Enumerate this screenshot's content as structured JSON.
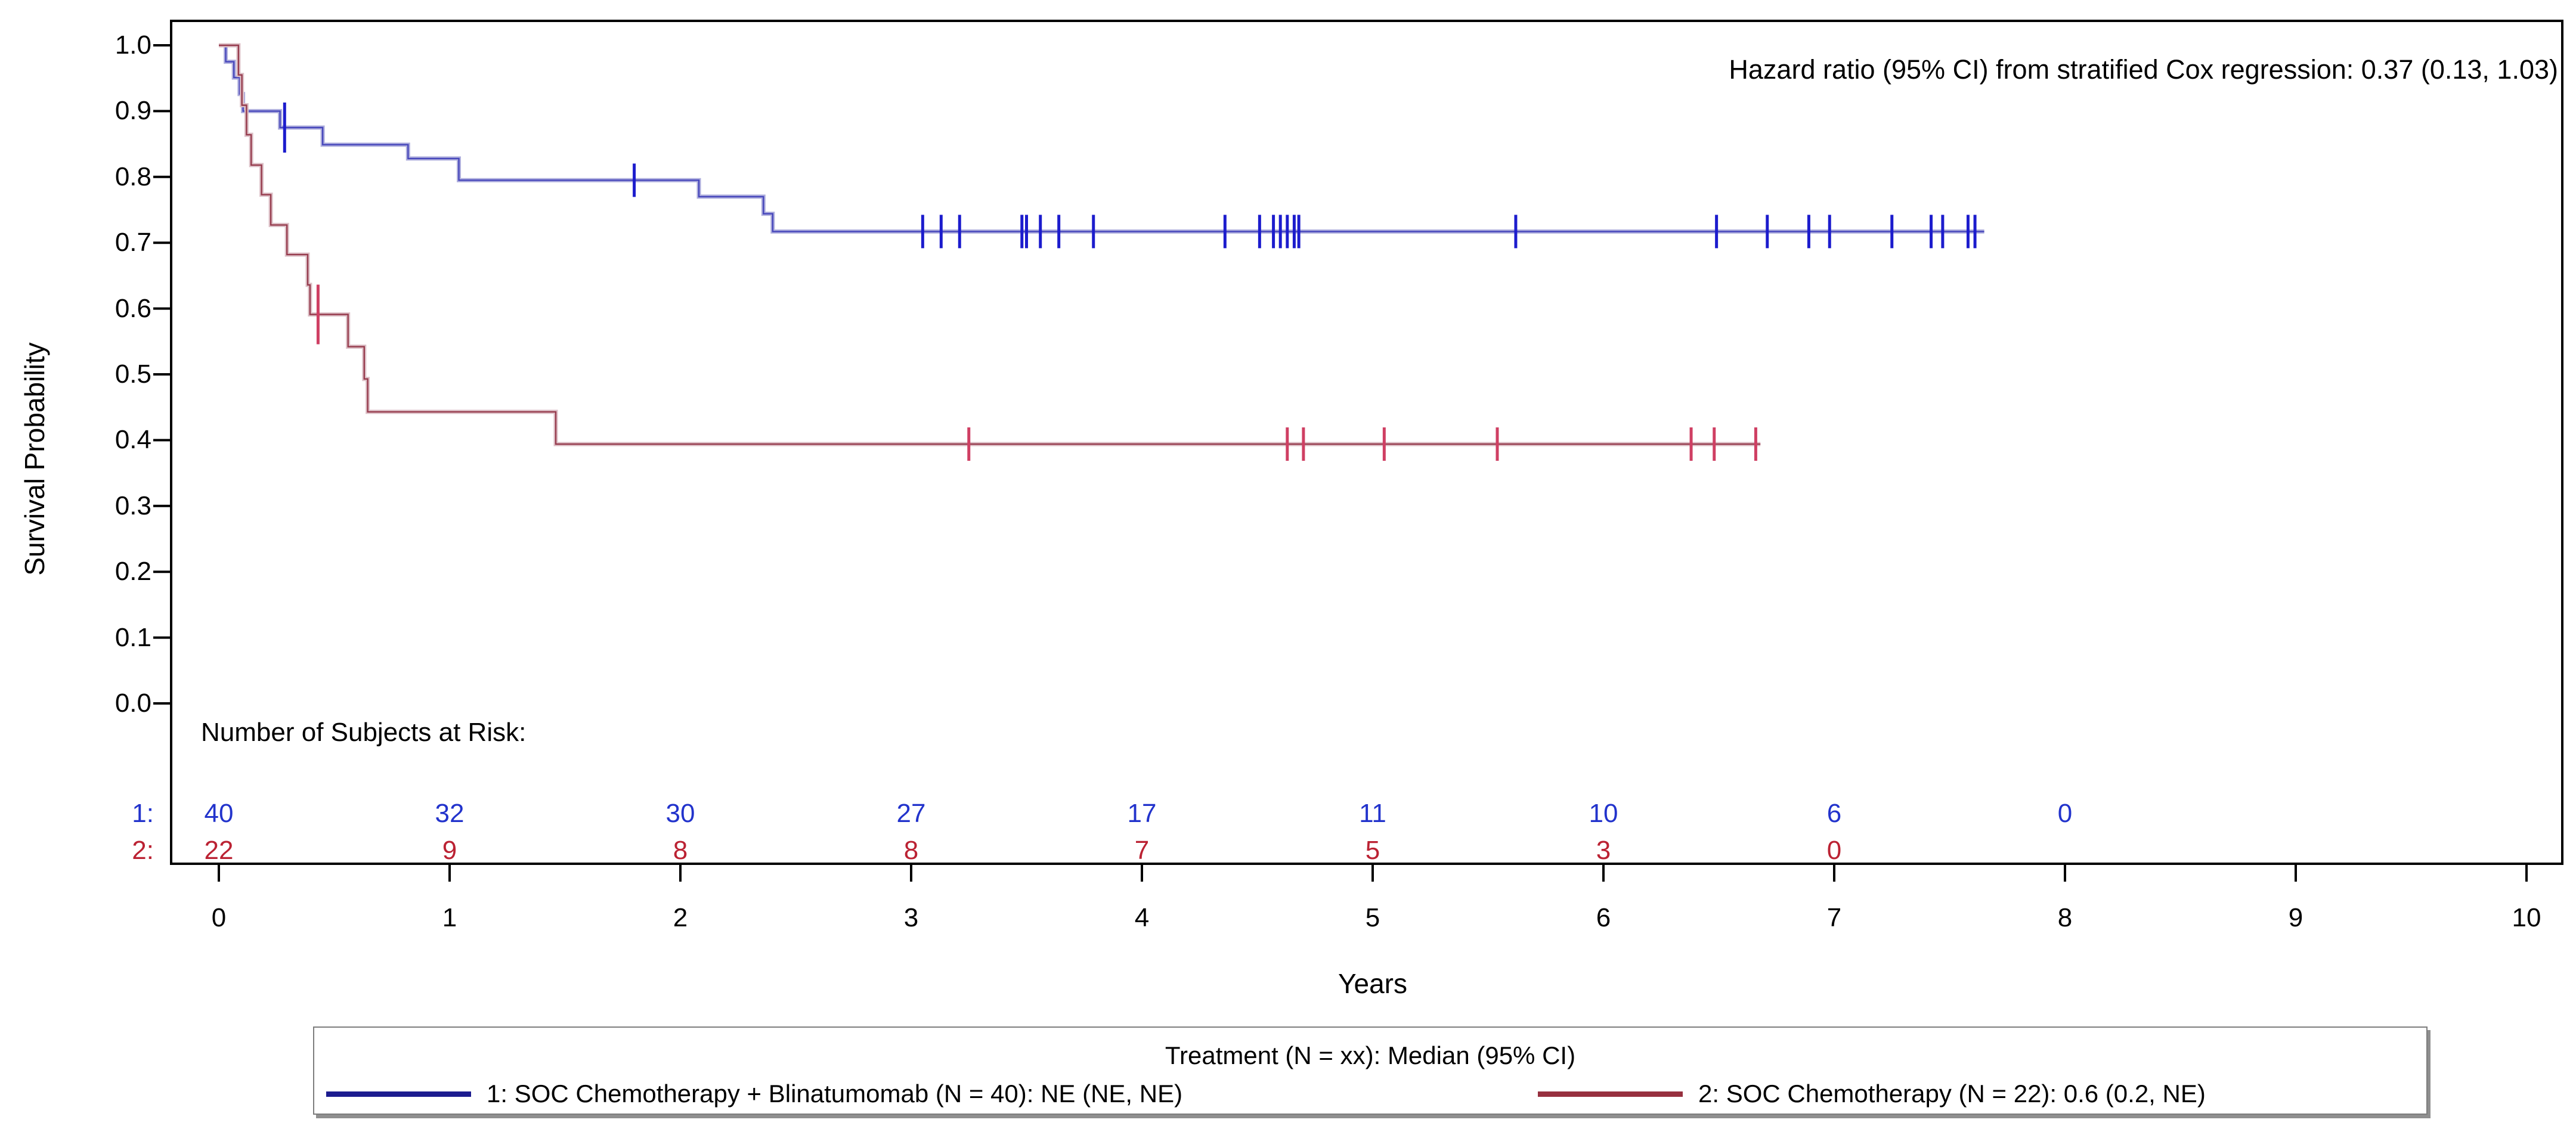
{
  "annotation": "Hazard ratio (95% CI) from stratified Cox regression: 0.37 (0.13, 1.03)",
  "axes": {
    "ylabel": "Survival Probability",
    "xlabel": "Years",
    "ytick_labels": [
      "1.0",
      "0.9",
      "0.8",
      "0.7",
      "0.6",
      "0.5",
      "0.4",
      "0.3",
      "0.2",
      "0.1",
      "0.0"
    ],
    "ytick_values": [
      1.0,
      0.9,
      0.8,
      0.7,
      0.6,
      0.5,
      0.4,
      0.3,
      0.2,
      0.1,
      0.0
    ],
    "xtick_labels": [
      "0",
      "1",
      "2",
      "3",
      "4",
      "5",
      "6",
      "7",
      "8",
      "9",
      "10"
    ],
    "xtick_values": [
      0,
      1,
      2,
      3,
      4,
      5,
      6,
      7,
      8,
      9,
      10
    ]
  },
  "risk_table": {
    "header": "Number of Subjects at Risk:",
    "rows": [
      {
        "label": "1:",
        "color": "#2233cc",
        "times": [
          0,
          1,
          2,
          3,
          4,
          5,
          6,
          7,
          8
        ],
        "counts": [
          "40",
          "32",
          "30",
          "27",
          "17",
          "11",
          "10",
          "6",
          "0"
        ]
      },
      {
        "label": "2:",
        "color": "#bb2233",
        "times": [
          0,
          1,
          2,
          3,
          4,
          5,
          6,
          7
        ],
        "counts": [
          "22",
          "9",
          "8",
          "8",
          "7",
          "5",
          "3",
          "0"
        ]
      }
    ]
  },
  "legend": {
    "title": "Treatment (N = xx): Median (95% CI)",
    "items": [
      {
        "label": "1: SOC Chemotherapy + Blinatumomab (N = 40): NE (NE, NE)",
        "color": "#1c1c8f"
      },
      {
        "label": "2: SOC Chemotherapy (N = 22): 0.6 (0.2, NE)",
        "color": "#97303f"
      }
    ]
  },
  "chart_data": {
    "type": "line",
    "subtype": "kaplan-meier-step",
    "title": "",
    "xlabel": "Years",
    "ylabel": "Survival Probability",
    "xlim": [
      0,
      10
    ],
    "ylim": [
      0.0,
      1.0
    ],
    "grid": false,
    "legend_position": "bottom",
    "series": [
      {
        "name": "1: SOC Chemotherapy + Blinatumomab (N = 40)",
        "halo_color": "#aeaedd",
        "core_color": "#4646bb",
        "censor_color": "#1c1ccd",
        "start": [
          0,
          1.0
        ],
        "steps": [
          [
            0.03,
            0.975
          ],
          [
            0.065,
            0.951
          ],
          [
            0.09,
            0.926
          ],
          [
            0.105,
            0.9
          ],
          [
            0.265,
            0.875
          ],
          [
            0.45,
            0.849
          ],
          [
            0.82,
            0.828
          ],
          [
            1.04,
            0.795
          ],
          [
            2.08,
            0.77
          ],
          [
            2.36,
            0.744
          ],
          [
            2.4,
            0.717
          ]
        ],
        "end_t": 7.65,
        "censors": [
          [
            0.285,
            42
          ],
          [
            1.8
          ],
          [
            3.05
          ],
          [
            3.13
          ],
          [
            3.21
          ],
          [
            3.48
          ],
          [
            3.5
          ],
          [
            3.56
          ],
          [
            3.64
          ],
          [
            3.79
          ],
          [
            4.36
          ],
          [
            4.51
          ],
          [
            4.57
          ],
          [
            4.6
          ],
          [
            4.63
          ],
          [
            4.66
          ],
          [
            4.68
          ],
          [
            5.62
          ],
          [
            6.49
          ],
          [
            6.71
          ],
          [
            6.89
          ],
          [
            6.98
          ],
          [
            7.25
          ],
          [
            7.42
          ],
          [
            7.47
          ],
          [
            7.58
          ],
          [
            7.61
          ]
        ]
      },
      {
        "name": "2: SOC Chemotherapy (N = 22)",
        "halo_color": "#dcbfc6",
        "core_color": "#963b4d",
        "censor_color": "#cf3f63",
        "start": [
          0,
          1.0
        ],
        "steps": [
          [
            0.085,
            0.955
          ],
          [
            0.1,
            0.909
          ],
          [
            0.12,
            0.864
          ],
          [
            0.14,
            0.818
          ],
          [
            0.185,
            0.773
          ],
          [
            0.225,
            0.727
          ],
          [
            0.295,
            0.682
          ],
          [
            0.385,
            0.636
          ],
          [
            0.395,
            0.591
          ],
          [
            0.56,
            0.542
          ],
          [
            0.63,
            0.493
          ],
          [
            0.645,
            0.443
          ],
          [
            1.46,
            0.394
          ]
        ],
        "end_t": 6.68,
        "censors": [
          [
            0.43,
            50
          ],
          [
            3.25
          ],
          [
            4.63
          ],
          [
            4.7
          ],
          [
            5.05
          ],
          [
            5.54
          ],
          [
            6.38
          ],
          [
            6.48
          ],
          [
            6.66
          ]
        ]
      }
    ]
  }
}
